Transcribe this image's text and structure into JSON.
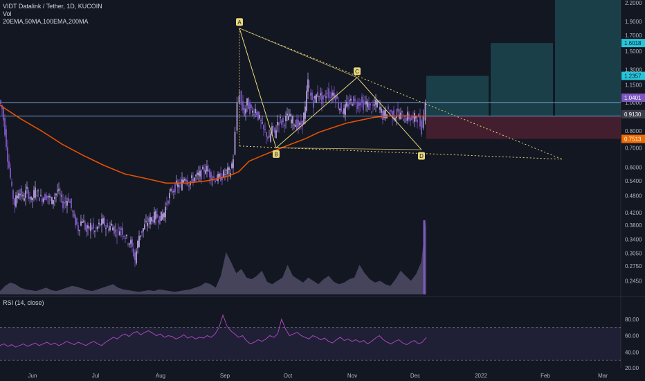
{
  "header": {
    "symbol_line": "VIDT Datalink / Tether, 1D, KUCOIN",
    "vol_label": "Vol",
    "indicators_label": "20EMA,50MA,100EMA,200MA"
  },
  "rsi_label": "RSI (14, close)",
  "colors": {
    "background": "#131722",
    "candle": "#b39ddb",
    "candle_dark": "#7e57c2",
    "ma_line": "#e65100",
    "pattern": "#e8d87a",
    "hline": "#7ea6e0",
    "target_zone": "#1e4e57",
    "stop_zone": "#4c2030",
    "rsi_line": "#ab47bc"
  },
  "chart_data": [
    {
      "type": "candlestick",
      "title": "VIDT Datalink / Tether, 1D, KUCOIN",
      "y_scale": "log",
      "ylim": [
        0.22,
        2.25
      ],
      "x_ticks": [
        "Jun",
        "Jul",
        "Aug",
        "Sep",
        "Oct",
        "Nov",
        "Dec",
        "2022",
        "Feb",
        "Mar"
      ],
      "y_ticks": [
        2.2,
        1.9,
        1.7,
        1.5,
        1.3,
        1.15,
        1.0,
        0.9,
        0.8,
        0.7,
        0.6,
        0.54,
        0.48,
        0.42,
        0.38,
        0.34,
        0.305,
        0.275,
        0.245
      ],
      "y_tick_labels": [
        "2.2000",
        "1.9000",
        "1.7000",
        "1.5000",
        "1.3000",
        "1.1500",
        "1.0000",
        "0.9000",
        "0.8000",
        "0.7000",
        "0.6000",
        "0.5400",
        "0.4800",
        "0.4200",
        "0.3800",
        "0.3400",
        "0.3050",
        "0.2750",
        "0.2450"
      ],
      "price_tags": [
        {
          "label": "1.6018",
          "value": 1.6018,
          "color": "#26c6da"
        },
        {
          "label": "1.2357",
          "value": 1.2357,
          "color": "#26c6da"
        },
        {
          "label": "1.0401",
          "value": 1.0401,
          "color": "#7e57c2"
        },
        {
          "label": "0.9130",
          "value": 0.913,
          "color": "#3a3e4a"
        },
        {
          "label": "0.7513",
          "value": 0.7513,
          "color": "#ef6c00"
        }
      ],
      "series": [
        {
          "kind": "price",
          "points": [
            [
              0,
              1.02
            ],
            [
              4,
              0.95
            ],
            [
              8,
              0.8
            ],
            [
              12,
              0.65
            ],
            [
              18,
              0.5
            ],
            [
              22,
              0.45
            ],
            [
              28,
              0.5
            ],
            [
              34,
              0.47
            ],
            [
              40,
              0.5
            ],
            [
              46,
              0.46
            ],
            [
              52,
              0.5
            ],
            [
              60,
              0.47
            ],
            [
              68,
              0.48
            ],
            [
              76,
              0.46
            ],
            [
              84,
              0.5
            ],
            [
              92,
              0.45
            ],
            [
              100,
              0.47
            ],
            [
              108,
              0.4
            ],
            [
              114,
              0.37
            ],
            [
              120,
              0.4
            ],
            [
              126,
              0.36
            ],
            [
              132,
              0.38
            ],
            [
              138,
              0.36
            ],
            [
              144,
              0.38
            ],
            [
              150,
              0.39
            ],
            [
              156,
              0.37
            ],
            [
              162,
              0.38
            ],
            [
              168,
              0.36
            ],
            [
              176,
              0.37
            ],
            [
              184,
              0.34
            ],
            [
              190,
              0.33
            ],
            [
              196,
              0.29
            ],
            [
              202,
              0.35
            ],
            [
              208,
              0.37
            ],
            [
              214,
              0.39
            ],
            [
              220,
              0.4
            ],
            [
              226,
              0.41
            ],
            [
              232,
              0.4
            ],
            [
              238,
              0.42
            ],
            [
              244,
              0.47
            ],
            [
              250,
              0.5
            ],
            [
              256,
              0.52
            ],
            [
              262,
              0.52
            ],
            [
              268,
              0.56
            ],
            [
              274,
              0.53
            ],
            [
              280,
              0.55
            ],
            [
              286,
              0.56
            ],
            [
              292,
              0.57
            ],
            [
              298,
              0.6
            ],
            [
              304,
              0.57
            ],
            [
              310,
              0.55
            ],
            [
              316,
              0.55
            ],
            [
              322,
              0.56
            ],
            [
              328,
              0.58
            ],
            [
              334,
              0.58
            ],
            [
              338,
              0.65
            ],
            [
              341,
              0.78
            ],
            [
              344,
              1.0
            ],
            [
              347,
              1.08
            ],
            [
              350,
              0.98
            ],
            [
              354,
              0.92
            ],
            [
              358,
              1.0
            ],
            [
              362,
              0.95
            ],
            [
              366,
              0.93
            ],
            [
              370,
              0.95
            ],
            [
              374,
              0.9
            ],
            [
              378,
              0.85
            ],
            [
              382,
              0.8
            ],
            [
              386,
              0.78
            ],
            [
              390,
              0.74
            ],
            [
              394,
              0.82
            ],
            [
              398,
              0.78
            ],
            [
              402,
              0.86
            ],
            [
              406,
              0.87
            ],
            [
              410,
              0.85
            ],
            [
              414,
              0.88
            ],
            [
              418,
              0.9
            ],
            [
              422,
              0.87
            ],
            [
              426,
              0.86
            ],
            [
              430,
              0.84
            ],
            [
              434,
              0.83
            ],
            [
              438,
              0.86
            ],
            [
              442,
              0.95
            ],
            [
              446,
              1.18
            ],
            [
              450,
              1.05
            ],
            [
              454,
              1.0
            ],
            [
              458,
              1.06
            ],
            [
              462,
              1.08
            ],
            [
              466,
              1.02
            ],
            [
              470,
              1.04
            ],
            [
              474,
              1.1
            ],
            [
              478,
              1.05
            ],
            [
              482,
              1.08
            ],
            [
              486,
              1.05
            ],
            [
              490,
              0.98
            ],
            [
              494,
              0.95
            ],
            [
              498,
              0.93
            ],
            [
              502,
              0.98
            ],
            [
              506,
              1.0
            ],
            [
              510,
              1.02
            ],
            [
              514,
              1.0
            ],
            [
              518,
              0.99
            ],
            [
              522,
              1.01
            ],
            [
              526,
              0.98
            ],
            [
              530,
              1.0
            ],
            [
              534,
              0.97
            ],
            [
              538,
              0.95
            ],
            [
              542,
              0.98
            ],
            [
              546,
              1.0
            ],
            [
              550,
              0.96
            ],
            [
              554,
              0.9
            ],
            [
              558,
              0.92
            ],
            [
              562,
              0.95
            ],
            [
              566,
              0.92
            ],
            [
              570,
              0.9
            ],
            [
              574,
              0.92
            ],
            [
              578,
              0.91
            ],
            [
              582,
              0.9
            ],
            [
              586,
              0.88
            ],
            [
              590,
              0.9
            ],
            [
              594,
              0.88
            ],
            [
              598,
              0.87
            ],
            [
              602,
              0.91
            ],
            [
              606,
              0.87
            ],
            [
              610,
              0.81
            ],
            [
              613,
              0.9
            ],
            [
              616,
              1.04
            ]
          ]
        },
        {
          "kind": "moving_average",
          "points": [
            [
              0,
              0.98
            ],
            [
              30,
              0.88
            ],
            [
              60,
              0.8
            ],
            [
              90,
              0.72
            ],
            [
              120,
              0.66
            ],
            [
              150,
              0.61
            ],
            [
              180,
              0.57
            ],
            [
              210,
              0.55
            ],
            [
              240,
              0.53
            ],
            [
              270,
              0.53
            ],
            [
              300,
              0.54
            ],
            [
              330,
              0.56
            ],
            [
              345,
              0.58
            ],
            [
              360,
              0.63
            ],
            [
              380,
              0.66
            ],
            [
              400,
              0.69
            ],
            [
              420,
              0.72
            ],
            [
              440,
              0.75
            ],
            [
              460,
              0.79
            ],
            [
              480,
              0.82
            ],
            [
              500,
              0.85
            ],
            [
              520,
              0.87
            ],
            [
              540,
              0.89
            ],
            [
              560,
              0.9
            ],
            [
              580,
              0.9
            ],
            [
              600,
              0.9
            ],
            [
              616,
              0.9
            ]
          ]
        }
      ],
      "horizontal_lines": [
        1.0,
        0.9
      ],
      "pattern": {
        "labels": [
          "A",
          "B",
          "C",
          "D"
        ],
        "points": [
          [
            346,
            1.8
          ],
          [
            399,
            0.7
          ],
          [
            516,
            1.22
          ],
          [
            609,
            0.69
          ]
        ]
      },
      "trendlines": [
        [
          [
            346,
            1.8
          ],
          [
            812,
            0.64
          ]
        ],
        [
          [
            346,
            0.71
          ],
          [
            812,
            0.64
          ]
        ]
      ],
      "target_zones": [
        {
          "x": [
            616,
            706
          ],
          "y_top": 1.2357,
          "y_bottom": 0.9,
          "kind": "target"
        },
        {
          "x": [
            709,
            799
          ],
          "y_top": 1.6018,
          "y_bottom": 0.9,
          "kind": "target"
        },
        {
          "x": [
            802,
            897
          ],
          "y_top": 2.25,
          "y_bottom": 0.9,
          "kind": "target"
        },
        {
          "x": [
            616,
            897
          ],
          "y_top": 0.9,
          "y_bottom": 0.7513,
          "kind": "stop"
        }
      ]
    },
    {
      "type": "area",
      "title": "Vol",
      "values": [
        4,
        10,
        14,
        12,
        8,
        6,
        5,
        4,
        6,
        8,
        5,
        4,
        6,
        8,
        10,
        9,
        7,
        5,
        4,
        6,
        8,
        10,
        12,
        8,
        6,
        5,
        4,
        3,
        4,
        5,
        4,
        6,
        5,
        4,
        3,
        4,
        5,
        6,
        8,
        10,
        14,
        12,
        8,
        22,
        50,
        38,
        25,
        30,
        20,
        18,
        22,
        28,
        15,
        12,
        16,
        20,
        35,
        22,
        18,
        14,
        20,
        16,
        12,
        18,
        22,
        15,
        12,
        14,
        18,
        20,
        35,
        25,
        18,
        14,
        16,
        12,
        10,
        18,
        28,
        22,
        16,
        24,
        38,
        90
      ]
    },
    {
      "type": "line",
      "title": "RSI (14, close)",
      "ylim": [
        20,
        100
      ],
      "y_ticks": [
        80,
        60,
        40
      ],
      "y_tick_labels": [
        "80.00",
        "60.00",
        "40.00"
      ],
      "extra_y_label": "20.00",
      "values": [
        48,
        50,
        47,
        49,
        46,
        48,
        50,
        47,
        49,
        51,
        48,
        50,
        52,
        49,
        51,
        48,
        50,
        53,
        51,
        49,
        52,
        50,
        48,
        51,
        53,
        50,
        48,
        52,
        55,
        58,
        56,
        60,
        62,
        59,
        63,
        65,
        61,
        64,
        66,
        63,
        60,
        62,
        58,
        60,
        59,
        56,
        58,
        61,
        57,
        59,
        56,
        58,
        57,
        60,
        58,
        62,
        70,
        85,
        72,
        66,
        62,
        58,
        60,
        54,
        50,
        52,
        55,
        53,
        56,
        60,
        58,
        62,
        80,
        68,
        60,
        62,
        64,
        60,
        58,
        56,
        60,
        58,
        55,
        57,
        53,
        51,
        55,
        58,
        54,
        56,
        53,
        55,
        52,
        54,
        50,
        53,
        57,
        60,
        55,
        52,
        50,
        53,
        55,
        51,
        49,
        52,
        54,
        50,
        52,
        58
      ],
      "levels": [
        70,
        30
      ]
    }
  ]
}
